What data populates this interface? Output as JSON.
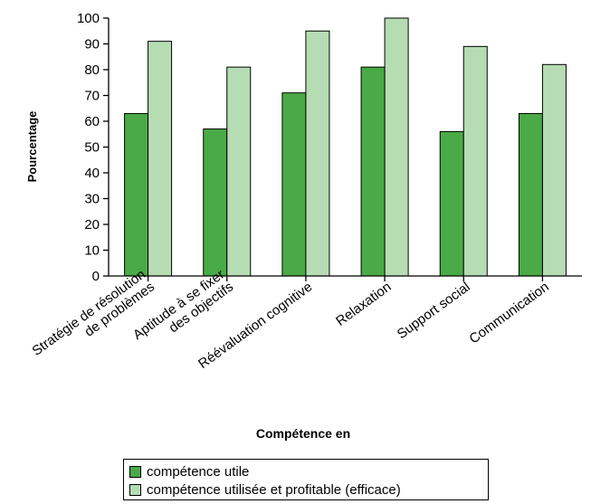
{
  "chart_data": {
    "type": "bar",
    "categories": [
      [
        "Stratégie de résolution",
        "de problèmes"
      ],
      [
        "Aptitude à se fixer",
        "des objectifs"
      ],
      [
        "Réévaluation cognitive"
      ],
      [
        "Relaxation"
      ],
      [
        "Support social"
      ],
      [
        "Communication"
      ]
    ],
    "series": [
      {
        "name": "compétence utile",
        "values": [
          63,
          57,
          71,
          81,
          56,
          63
        ],
        "color": "#4aaa47"
      },
      {
        "name": "compétence utilisée et profitable (efficace)",
        "values": [
          91,
          81,
          95,
          100,
          89,
          82
        ],
        "color": "#b6dcb3"
      }
    ],
    "xlabel": "Compétence en",
    "ylabel": "Pourcentage",
    "ylim": [
      0,
      100
    ],
    "yticks": [
      0,
      10,
      20,
      30,
      40,
      50,
      60,
      70,
      80,
      90,
      100
    ],
    "grid": false,
    "legend_position": "bottom"
  }
}
